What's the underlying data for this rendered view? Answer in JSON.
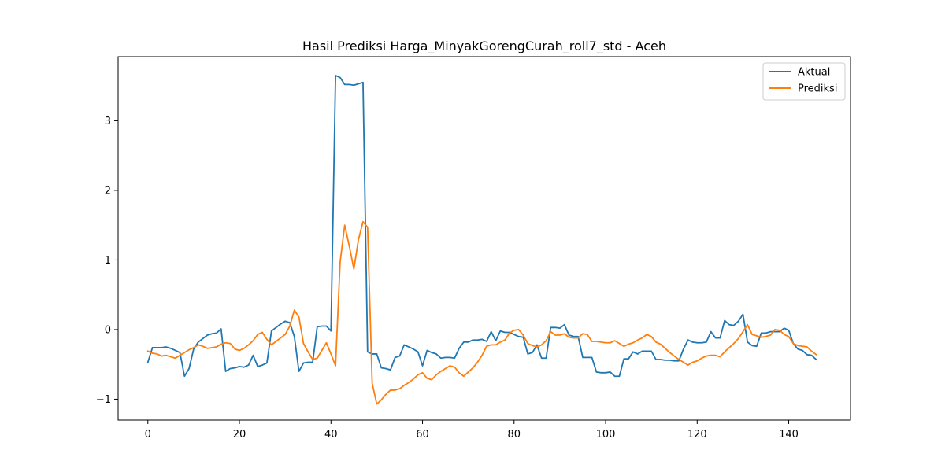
{
  "chart_data": {
    "type": "line",
    "title": "Hasil Prediksi Harga_MinyakGorengCurah_roll7_std - Aceh",
    "xlabel": "",
    "ylabel": "",
    "xlim": [
      -6.5,
      153.5
    ],
    "ylim": [
      -1.3,
      3.92
    ],
    "xticks": [
      0,
      20,
      40,
      60,
      80,
      100,
      120,
      140
    ],
    "yticks": [
      -1,
      0,
      1,
      2,
      3
    ],
    "xtick_labels": [
      "0",
      "20",
      "40",
      "60",
      "80",
      "100",
      "120",
      "140"
    ],
    "ytick_labels": [
      "−1",
      "0",
      "1",
      "2",
      "3"
    ],
    "grid": false,
    "legend_position": "upper right",
    "x": [
      0,
      1,
      2,
      3,
      4,
      5,
      6,
      7,
      8,
      9,
      10,
      11,
      12,
      13,
      14,
      15,
      16,
      17,
      18,
      19,
      20,
      21,
      22,
      23,
      24,
      25,
      26,
      27,
      28,
      29,
      30,
      31,
      32,
      33,
      34,
      35,
      36,
      37,
      38,
      39,
      40,
      41,
      42,
      43,
      44,
      45,
      46,
      47,
      48,
      49,
      50,
      51,
      52,
      53,
      54,
      55,
      56,
      57,
      58,
      59,
      60,
      61,
      62,
      63,
      64,
      65,
      66,
      67,
      68,
      69,
      70,
      71,
      72,
      73,
      74,
      75,
      76,
      77,
      78,
      79,
      80,
      81,
      82,
      83,
      84,
      85,
      86,
      87,
      88,
      89,
      90,
      91,
      92,
      93,
      94,
      95,
      96,
      97,
      98,
      99,
      100,
      101,
      102,
      103,
      104,
      105,
      106,
      107,
      108,
      109,
      110,
      111,
      112,
      113,
      114,
      115,
      116,
      117,
      118,
      119,
      120,
      121,
      122,
      123,
      124,
      125,
      126,
      127,
      128,
      129,
      130,
      131,
      132,
      133,
      134,
      135,
      136,
      137,
      138,
      139,
      140,
      141,
      142,
      143,
      144,
      145,
      146
    ],
    "series": [
      {
        "name": "Aktual",
        "color": "#1f77b4",
        "values": [
          -0.47,
          -0.26,
          -0.26,
          -0.26,
          -0.25,
          -0.27,
          -0.3,
          -0.33,
          -0.67,
          -0.56,
          -0.28,
          -0.18,
          -0.13,
          -0.08,
          -0.06,
          -0.05,
          0.01,
          -0.6,
          -0.56,
          -0.55,
          -0.53,
          -0.54,
          -0.51,
          -0.37,
          -0.53,
          -0.51,
          -0.48,
          -0.02,
          0.03,
          0.08,
          0.12,
          0.1,
          -0.1,
          -0.6,
          -0.48,
          -0.47,
          -0.47,
          0.04,
          0.05,
          0.05,
          -0.02,
          3.65,
          3.62,
          3.52,
          3.52,
          3.51,
          3.53,
          3.55,
          -0.32,
          -0.35,
          -0.35,
          -0.55,
          -0.56,
          -0.58,
          -0.4,
          -0.38,
          -0.22,
          -0.25,
          -0.28,
          -0.32,
          -0.52,
          -0.3,
          -0.33,
          -0.35,
          -0.41,
          -0.4,
          -0.4,
          -0.41,
          -0.27,
          -0.18,
          -0.18,
          -0.15,
          -0.15,
          -0.14,
          -0.17,
          -0.03,
          -0.16,
          -0.02,
          -0.04,
          -0.04,
          -0.07,
          -0.1,
          -0.11,
          -0.35,
          -0.33,
          -0.22,
          -0.41,
          -0.41,
          0.03,
          0.03,
          0.02,
          0.07,
          -0.08,
          -0.1,
          -0.1,
          -0.4,
          -0.4,
          -0.4,
          -0.61,
          -0.62,
          -0.62,
          -0.61,
          -0.67,
          -0.67,
          -0.42,
          -0.42,
          -0.32,
          -0.35,
          -0.31,
          -0.31,
          -0.31,
          -0.43,
          -0.43,
          -0.44,
          -0.44,
          -0.45,
          -0.45,
          -0.28,
          -0.15,
          -0.18,
          -0.19,
          -0.19,
          -0.18,
          -0.03,
          -0.12,
          -0.12,
          0.13,
          0.07,
          0.06,
          0.12,
          0.22,
          -0.18,
          -0.23,
          -0.24,
          -0.05,
          -0.05,
          -0.03,
          -0.03,
          -0.03,
          0.02,
          -0.01,
          -0.2,
          -0.28,
          -0.3,
          -0.36,
          -0.37,
          -0.43
        ]
      },
      {
        "name": "Prediksi",
        "color": "#ff7f0e",
        "values": [
          -0.31,
          -0.34,
          -0.35,
          -0.38,
          -0.37,
          -0.39,
          -0.41,
          -0.37,
          -0.33,
          -0.29,
          -0.26,
          -0.22,
          -0.24,
          -0.27,
          -0.26,
          -0.25,
          -0.21,
          -0.19,
          -0.2,
          -0.28,
          -0.3,
          -0.27,
          -0.22,
          -0.16,
          -0.07,
          -0.04,
          -0.14,
          -0.22,
          -0.17,
          -0.12,
          -0.07,
          0.05,
          0.28,
          0.18,
          -0.2,
          -0.32,
          -0.43,
          -0.41,
          -0.3,
          -0.19,
          -0.35,
          -0.52,
          0.97,
          1.5,
          1.2,
          0.87,
          1.29,
          1.55,
          1.47,
          -0.77,
          -1.07,
          -1.01,
          -0.93,
          -0.87,
          -0.87,
          -0.85,
          -0.8,
          -0.76,
          -0.71,
          -0.65,
          -0.62,
          -0.7,
          -0.72,
          -0.65,
          -0.6,
          -0.56,
          -0.52,
          -0.54,
          -0.62,
          -0.67,
          -0.61,
          -0.55,
          -0.47,
          -0.37,
          -0.24,
          -0.22,
          -0.22,
          -0.18,
          -0.15,
          -0.05,
          -0.01,
          0.0,
          -0.08,
          -0.2,
          -0.23,
          -0.25,
          -0.22,
          -0.16,
          -0.03,
          -0.08,
          -0.08,
          -0.06,
          -0.11,
          -0.12,
          -0.12,
          -0.06,
          -0.07,
          -0.17,
          -0.17,
          -0.18,
          -0.19,
          -0.19,
          -0.16,
          -0.2,
          -0.24,
          -0.21,
          -0.19,
          -0.15,
          -0.12,
          -0.07,
          -0.1,
          -0.18,
          -0.21,
          -0.27,
          -0.33,
          -0.38,
          -0.43,
          -0.47,
          -0.51,
          -0.47,
          -0.45,
          -0.41,
          -0.38,
          -0.37,
          -0.37,
          -0.39,
          -0.32,
          -0.26,
          -0.2,
          -0.13,
          -0.03,
          0.07,
          -0.07,
          -0.09,
          -0.11,
          -0.1,
          -0.08,
          0.0,
          -0.01,
          -0.07,
          -0.1,
          -0.2,
          -0.23,
          -0.24,
          -0.25,
          -0.31,
          -0.36
        ]
      }
    ]
  }
}
